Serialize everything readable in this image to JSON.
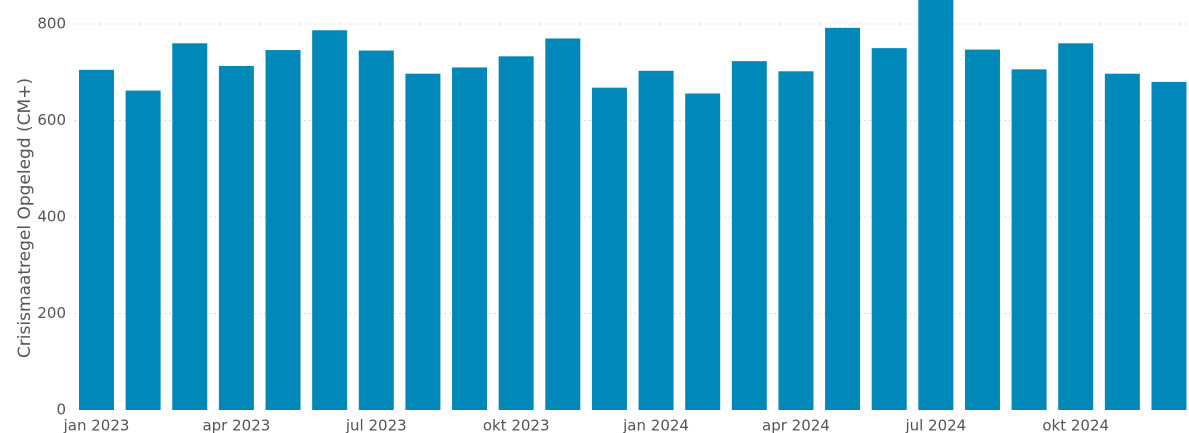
{
  "chart_data": {
    "type": "bar",
    "ylabel": "Crisismaatregel Opgelegd (CM+)",
    "xlabel": "",
    "title": "",
    "ylim": [
      0,
      800
    ],
    "y_ticks": [
      0,
      200,
      400,
      600,
      800
    ],
    "grid": "horizontal dotted",
    "bar_color": "#0088b8",
    "categories": [
      "jan 2023",
      "feb 2023",
      "mrt 2023",
      "apr 2023",
      "mei 2023",
      "jun 2023",
      "jul 2023",
      "aug 2023",
      "sep 2023",
      "okt 2023",
      "nov 2023",
      "dec 2023",
      "jan 2024",
      "feb 2024",
      "mrt 2024",
      "apr 2024",
      "mei 2024",
      "jun 2024",
      "jul 2024",
      "aug 2024",
      "sep 2024",
      "okt 2024",
      "nov 2024",
      "dec 2024"
    ],
    "x_tick_labels": [
      "jan 2023",
      "apr 2023",
      "jul 2023",
      "okt 2023",
      "jan 2024",
      "apr 2024",
      "jul 2024",
      "okt 2024"
    ],
    "values": [
      705,
      662,
      760,
      713,
      746,
      787,
      745,
      697,
      710,
      733,
      770,
      668,
      703,
      656,
      723,
      702,
      792,
      750,
      850,
      747,
      706,
      760,
      697,
      680
    ]
  }
}
